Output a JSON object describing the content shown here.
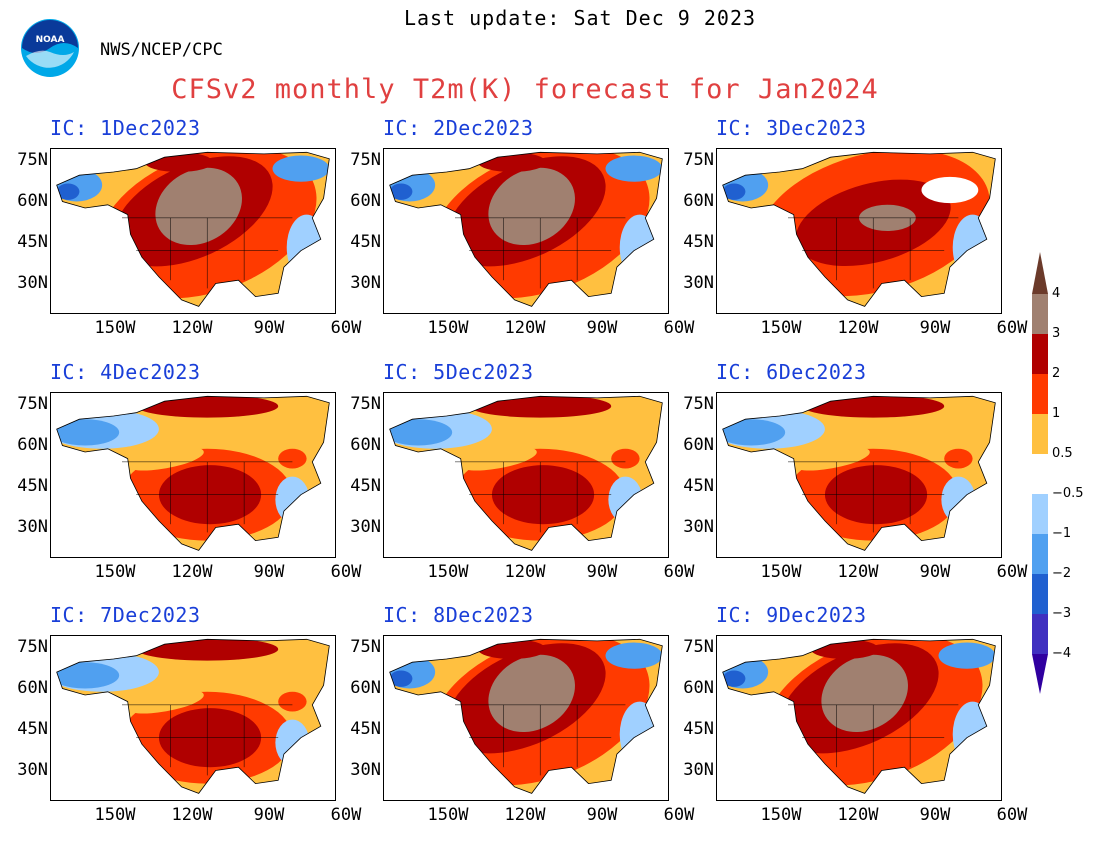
{
  "header": {
    "last_update": "Last update: Sat Dec  9 2023",
    "org": "NWS/NCEP/CPC",
    "title": "CFSv2 monthly T2m(K) forecast for Jan2024",
    "logo_text": "NOAA"
  },
  "panels": [
    {
      "label": "IC:  1Dec2023",
      "scenario": "brown_center"
    },
    {
      "label": "IC:  2Dec2023",
      "scenario": "brown_center"
    },
    {
      "label": "IC:  3Dec2023",
      "scenario": "red_wide"
    },
    {
      "label": "IC:  4Dec2023",
      "scenario": "cold_north"
    },
    {
      "label": "IC:  5Dec2023",
      "scenario": "cold_north"
    },
    {
      "label": "IC:  6Dec2023",
      "scenario": "cold_north"
    },
    {
      "label": "IC:  7Dec2023",
      "scenario": "cold_north"
    },
    {
      "label": "IC:  8Dec2023",
      "scenario": "brown_center"
    },
    {
      "label": "IC:  9Dec2023",
      "scenario": "brown_center"
    }
  ],
  "lat_labels": [
    "75N",
    "60N",
    "45N",
    "30N"
  ],
  "lon_labels": [
    "150W",
    "120W",
    "90W",
    "60W"
  ],
  "colorbar": {
    "labels": [
      "4",
      "3",
      "2",
      "1",
      "0.5",
      "−0.5",
      "−1",
      "−2",
      "−3",
      "−4"
    ],
    "colors": [
      "#6b3a2a",
      "#a08070",
      "#b00000",
      "#ff3a00",
      "#ffc040",
      "#ffffff",
      "#a0d0ff",
      "#50a0f0",
      "#2060d0",
      "#4030c0",
      "#3000a0"
    ]
  }
}
